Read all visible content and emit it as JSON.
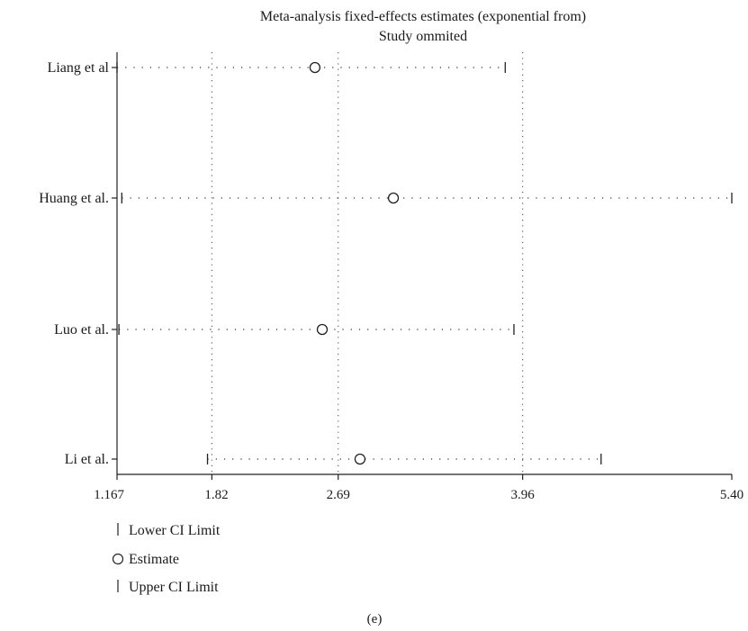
{
  "chart_data": {
    "type": "forest",
    "title_lines": [
      "Meta-analysis fixed-effects estimates (exponential from)",
      "Study ommited"
    ],
    "studies": [
      {
        "name": "Liang et al",
        "lower": 1.167,
        "estimate": 2.53,
        "upper": 3.84
      },
      {
        "name": "Huang et al.",
        "lower": 1.2,
        "estimate": 3.07,
        "upper": 5.4
      },
      {
        "name": "Luo et al.",
        "lower": 1.18,
        "estimate": 2.58,
        "upper": 3.9
      },
      {
        "name": "Li et al.",
        "lower": 1.79,
        "estimate": 2.84,
        "upper": 4.5
      }
    ],
    "x_axis": {
      "min": 1.167,
      "max": 5.4,
      "ticks": [
        {
          "value": 1.167,
          "label": "1.167"
        },
        {
          "value": 1.82,
          "label": "1.82"
        },
        {
          "value": 2.69,
          "label": "2.69"
        },
        {
          "value": 3.96,
          "label": "3.96"
        },
        {
          "value": 5.4,
          "label": "5.40"
        }
      ],
      "reference_lines": [
        1.82,
        2.69,
        3.96
      ]
    },
    "legend": {
      "placement": "bottom-left",
      "items": [
        {
          "symbol": "tick",
          "label": "Lower CI Limit"
        },
        {
          "symbol": "circle",
          "label": "Estimate"
        },
        {
          "symbol": "tick",
          "label": "Upper CI Limit"
        }
      ]
    },
    "caption": "(e)"
  }
}
